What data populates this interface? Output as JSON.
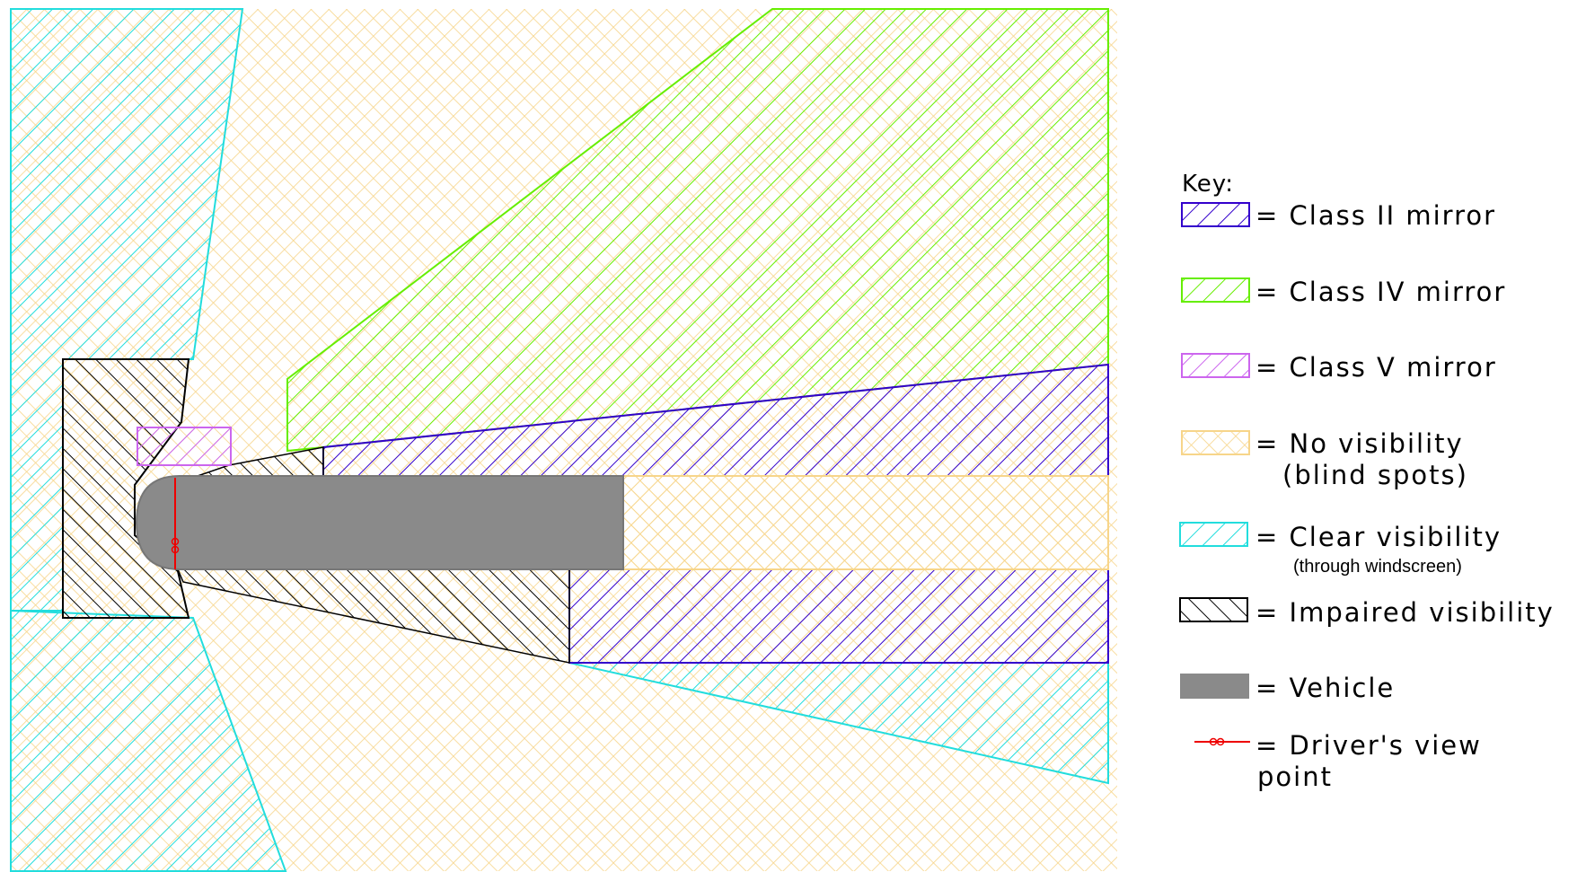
{
  "colors": {
    "class_ii": "#3300cc",
    "class_iv": "#66ee00",
    "class_v": "#cc66ee",
    "no_visibility": "#f7d58a",
    "clear_visibility": "#22dddd",
    "impaired": "#000000",
    "vehicle": "#8a8a8a",
    "driver_viewpoint": "#ee0000"
  },
  "key": {
    "title": "Key:",
    "items": [
      {
        "id": "class-ii",
        "label": "= Class II mirror",
        "sublabel": "",
        "swatch": "diag"
      },
      {
        "id": "class-iv",
        "label": "= Class IV mirror",
        "sublabel": "",
        "swatch": "diag"
      },
      {
        "id": "class-v",
        "label": "= Class V mirror",
        "sublabel": "",
        "swatch": "diag"
      },
      {
        "id": "no-visibility",
        "label": "= No visibility",
        "sublabel": "(blind spots)",
        "swatch": "cross"
      },
      {
        "id": "clear-visibility",
        "label": "= Clear visibility",
        "sublabel": "(through windscreen)",
        "swatch": "diag"
      },
      {
        "id": "impaired-visibility",
        "label": "= Impaired visibility",
        "sublabel": "",
        "swatch": "diag"
      },
      {
        "id": "vehicle",
        "label": "= Vehicle",
        "sublabel": "",
        "swatch": "solid"
      },
      {
        "id": "driver-viewpoint",
        "label": "= Driver's view",
        "sublabel": "point",
        "swatch": "line"
      }
    ]
  }
}
